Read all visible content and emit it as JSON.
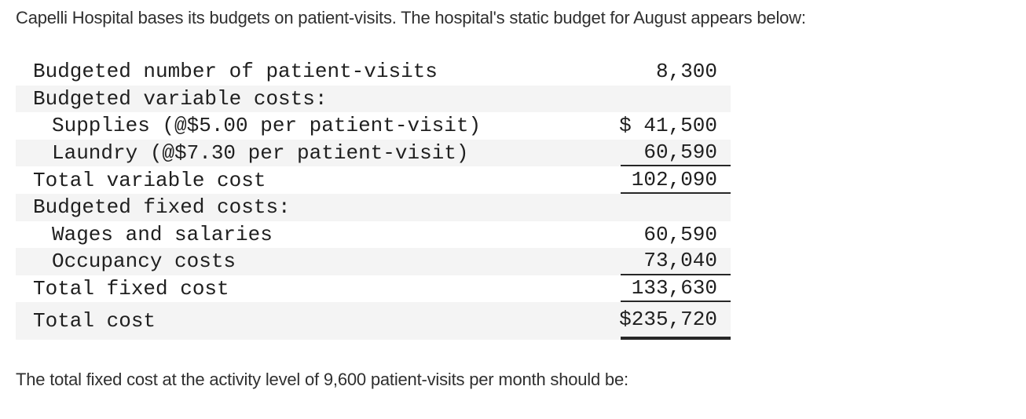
{
  "page": {
    "title": "Capelli Hospital bases its budgets on patient-visits. The hospital's static budget for August appears below:",
    "question": "The total fixed cost at the activity level of 9,600 patient-visits per month should be:"
  },
  "budget_table": {
    "rows": [
      {
        "label": "Budgeted number of patient-visits",
        "amount": "8,300",
        "indent": false,
        "shaded": false,
        "rule": "none",
        "tall": false
      },
      {
        "label": "Budgeted variable costs:",
        "amount": "",
        "indent": false,
        "shaded": true,
        "rule": "none",
        "tall": false
      },
      {
        "label": "Supplies (@$5.00 per patient-visit)",
        "amount": "$ 41,500",
        "indent": true,
        "shaded": false,
        "rule": "none",
        "tall": false
      },
      {
        "label": "Laundry (@$7.30 per patient-visit)",
        "amount": "60,590",
        "indent": true,
        "shaded": true,
        "rule": "single",
        "tall": false
      },
      {
        "label": "Total variable cost",
        "amount": "102,090",
        "indent": false,
        "shaded": false,
        "rule": "single",
        "tall": false
      },
      {
        "label": "Budgeted fixed costs:",
        "amount": "",
        "indent": false,
        "shaded": true,
        "rule": "none",
        "tall": false
      },
      {
        "label": "Wages and salaries",
        "amount": "60,590",
        "indent": true,
        "shaded": false,
        "rule": "none",
        "tall": false
      },
      {
        "label": "Occupancy costs",
        "amount": "73,040",
        "indent": true,
        "shaded": true,
        "rule": "single",
        "tall": false
      },
      {
        "label": "Total fixed cost",
        "amount": "133,630",
        "indent": false,
        "shaded": false,
        "rule": "single",
        "tall": false
      },
      {
        "label": "Total cost",
        "amount": "$235,720",
        "indent": false,
        "shaded": true,
        "rule": "thick",
        "tall": true
      }
    ],
    "colors": {
      "stripe": "#f4f4f4",
      "rule": "#272727",
      "text": "#1f1f1f"
    }
  }
}
